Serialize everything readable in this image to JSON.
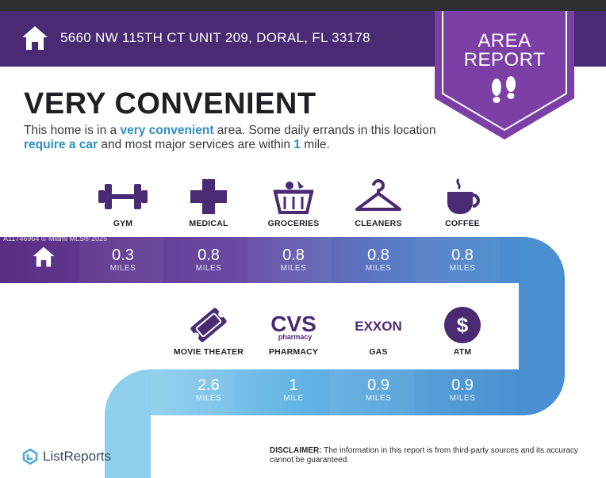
{
  "header": {
    "address": "5660 NW 115TH CT UNIT 209, DORAL, FL 33178"
  },
  "badge": {
    "line1": "AREA",
    "line2": "REPORT"
  },
  "title": "VERY CONVENIENT",
  "description": {
    "part1": "This home is in a ",
    "hl1": "very convenient",
    "part2": " area. Some daily errands in this location ",
    "hl2": "require a car",
    "part3": " and most major services are within ",
    "hl3": "1",
    "part4": " mile."
  },
  "watermark": "A11746964 © Miami MLS® 2025",
  "row1": [
    {
      "label": "GYM",
      "icon": "dumbbell-icon",
      "value": "0.3",
      "unit": "MILES"
    },
    {
      "label": "MEDICAL",
      "icon": "medical-cross-icon",
      "value": "0.8",
      "unit": "MILES"
    },
    {
      "label": "GROCERIES",
      "icon": "grocery-basket-icon",
      "value": "0.8",
      "unit": "MILES"
    },
    {
      "label": "CLEANERS",
      "icon": "hanger-icon",
      "value": "0.8",
      "unit": "MILES"
    },
    {
      "label": "COFFEE",
      "icon": "coffee-cup-icon",
      "value": "0.8",
      "unit": "MILES"
    }
  ],
  "row2": [
    {
      "label": "MOVIE THEATER",
      "icon": "ticket-icon",
      "value": "2.6",
      "unit": "MILES"
    },
    {
      "label": "PHARMACY",
      "icon": "cvs-logo",
      "logo_text": "CVS",
      "logo_sub": "pharmacy",
      "value": "1",
      "unit": "MILE"
    },
    {
      "label": "GAS",
      "icon": "exxon-logo",
      "logo_text": "EXXON",
      "value": "0.9",
      "unit": "MILES"
    },
    {
      "label": "ATM",
      "icon": "dollar-icon",
      "value": "0.9",
      "unit": "MILES"
    }
  ],
  "brand": {
    "name": "ListReports"
  },
  "disclaimer": {
    "label": "DISCLAIMER:",
    "text": " The information in this report is from third-party sources and its accuracy cannot be guaranteed."
  },
  "colors": {
    "header": "#4a2a72",
    "badge": "#7b3fa6",
    "accent": "#2a8ec6",
    "ribbon_purple": "#5b2f86",
    "ribbon_blue": "#4a8fd0",
    "ribbon_light": "#7ec3e8"
  }
}
